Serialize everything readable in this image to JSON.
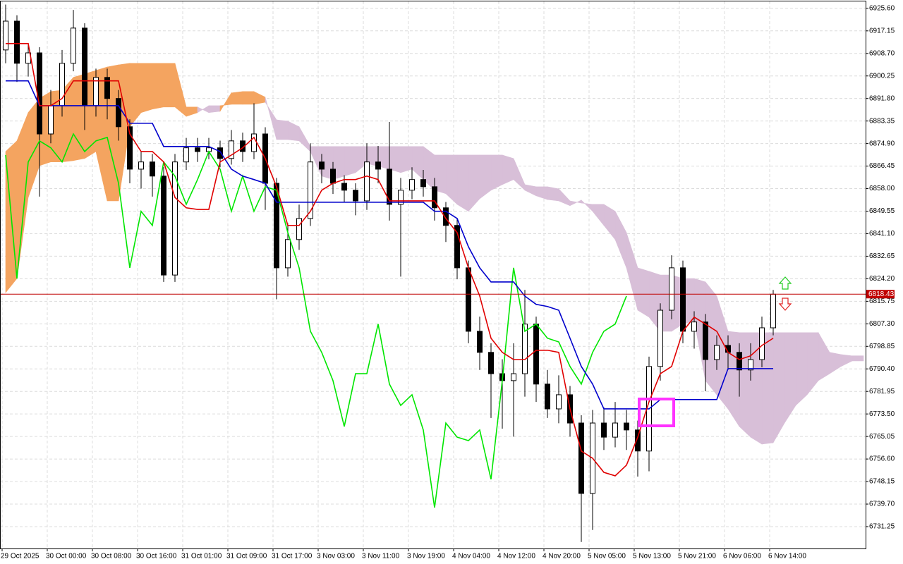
{
  "chart_data": {
    "type": "candlestick",
    "categories": [
      "29 Oct 2025",
      null,
      null,
      null,
      "30 Oct 00:00",
      null,
      null,
      null,
      "30 Oct 08:00",
      null,
      null,
      null,
      "30 Oct 16:00",
      null,
      null,
      null,
      "31 Oct 01:00",
      null,
      null,
      null,
      "31 Oct 09:00",
      null,
      null,
      null,
      "31 Oct 17:00",
      null,
      null,
      null,
      "3 Nov 03:00",
      null,
      null,
      null,
      "3 Nov 11:00",
      null,
      null,
      null,
      "3 Nov 19:00",
      null,
      null,
      null,
      "4 Nov 04:00",
      null,
      null,
      null,
      "4 Nov 12:00",
      null,
      null,
      null,
      "4 Nov 20:00",
      null,
      null,
      null,
      "5 Nov 05:00",
      null,
      null,
      null,
      "5 Nov 13:00",
      null,
      null,
      null,
      "5 Nov 21:00",
      null,
      null,
      null,
      "6 Nov 06:00",
      null,
      null,
      null,
      "6 Nov 14:00",
      null,
      null,
      null,
      null,
      null,
      null,
      null,
      null
    ],
    "open": [
      6910.0,
      6920.8,
      6905.0,
      6908.9,
      6878.5,
      6889.1,
      6905.0,
      6918.2,
      6889.1,
      6899.7,
      6891.8,
      6881.2,
      6865.3,
      6868.0,
      6862.7,
      6825.6,
      6868.0,
      6873.3,
      6871.9,
      6873.3,
      6869.3,
      6875.9,
      6871.9,
      6878.5,
      6860.0,
      6828.3,
      6838.9,
      6846.8,
      6868.0,
      6865.3,
      6860.0,
      6857.4,
      6853.4,
      6868.0,
      6865.3,
      6852.1,
      6857.4,
      6861.4,
      6858.7,
      6850.8,
      6844.2,
      6828.3,
      6804.5,
      6796.6,
      6788.6,
      6786.0,
      6788.6,
      6807.2,
      6784.7,
      6775.4,
      6780.7,
      6770.1,
      6743.7,
      6770.1,
      6764.8,
      6770.1,
      6767.5,
      6759.6,
      6791.3,
      6812.4,
      6828.3,
      6804.5,
      6808.0,
      6793.9,
      6799.2,
      6796.6,
      6790.0,
      6793.9,
      6805.8,
      null,
      null,
      null,
      null,
      null,
      null,
      null,
      null
    ],
    "high": [
      6927.0,
      6923.0,
      6912.0,
      6911.0,
      6895.0,
      6910.0,
      6925.0,
      6920.0,
      6903.0,
      6903.0,
      6895.0,
      6884.0,
      6872.0,
      6871.0,
      6866.0,
      6871.0,
      6877.0,
      6877.0,
      6877.0,
      6876.0,
      6880.0,
      6879.0,
      6890.0,
      6881.0,
      6862.0,
      6845.0,
      6852.0,
      6875.0,
      6871.0,
      6868.0,
      6863.0,
      6860.0,
      6875.0,
      6874.0,
      6883.0,
      6862.0,
      6866.0,
      6865.0,
      6862.0,
      6853.0,
      6847.0,
      6831.0,
      6810.0,
      6800.0,
      6794.0,
      6800.0,
      6820.0,
      6810.0,
      6790.0,
      6788.0,
      6784.0,
      6773.0,
      6775.0,
      6776.0,
      6778.0,
      6775.0,
      6771.0,
      6795.0,
      6815.0,
      6833.0,
      6831.0,
      6812.0,
      6811.0,
      6803.0,
      6803.0,
      6800.0,
      6800.0,
      6810.0,
      6820.0,
      null,
      null,
      null,
      null,
      null,
      null,
      null,
      null
    ],
    "low": [
      6905.0,
      6898.0,
      6900.0,
      6855.0,
      6875.0,
      6885.0,
      6902.0,
      6880.0,
      6885.0,
      6884.0,
      6876.0,
      6860.0,
      6858.0,
      6855.0,
      6823.0,
      6823.0,
      6865.0,
      6868.0,
      6869.0,
      6866.0,
      6867.0,
      6868.0,
      6869.0,
      6850.0,
      6816.5,
      6825.0,
      6835.0,
      6844.0,
      6860.0,
      6856.0,
      6853.0,
      6848.0,
      6850.0,
      6860.0,
      6846.0,
      6825.0,
      6854.0,
      6855.0,
      6846.0,
      6838.0,
      6824.0,
      6800.0,
      6790.0,
      6772.0,
      6768.0,
      6765.0,
      6780.0,
      6778.0,
      6772.0,
      6770.0,
      6765.0,
      6725.5,
      6730.0,
      6760.0,
      6761.0,
      6760.0,
      6750.0,
      6752.0,
      6786.0,
      6809.0,
      6800.0,
      6798.0,
      6782.0,
      6790.0,
      6790.0,
      6780.0,
      6786.0,
      6791.0,
      6803.0,
      null,
      null,
      null,
      null,
      null,
      null,
      null,
      null
    ],
    "close": [
      6920.8,
      6905.0,
      6908.9,
      6878.5,
      6889.1,
      6905.0,
      6918.2,
      6889.1,
      6899.7,
      6891.8,
      6881.2,
      6865.3,
      6868.0,
      6862.7,
      6825.6,
      6868.0,
      6873.3,
      6871.9,
      6873.3,
      6869.3,
      6875.9,
      6871.9,
      6878.5,
      6860.0,
      6828.3,
      6838.9,
      6846.8,
      6868.0,
      6865.3,
      6860.0,
      6857.4,
      6853.4,
      6868.0,
      6865.3,
      6852.1,
      6857.4,
      6861.4,
      6858.7,
      6850.8,
      6844.2,
      6828.3,
      6804.5,
      6796.6,
      6788.6,
      6786.0,
      6788.6,
      6807.2,
      6784.7,
      6775.4,
      6780.7,
      6770.1,
      6743.7,
      6770.1,
      6764.8,
      6770.1,
      6767.5,
      6759.6,
      6791.3,
      6812.4,
      6828.3,
      6804.5,
      6808.0,
      6793.9,
      6799.2,
      6796.6,
      6790.0,
      6793.9,
      6805.8,
      6818.4,
      null,
      null,
      null,
      null,
      null,
      null,
      null,
      null
    ],
    "candle_up_color": "#ffffff",
    "candle_down_color": "#000000",
    "span_a": [
      6871.9,
      6875.9,
      6886.5,
      6891.8,
      6894.4,
      6894.9,
      6899.7,
      6901.0,
      6902.3,
      6903.6,
      6904.4,
      6905.0,
      6905.0,
      6905.0,
      6905.0,
      6905.0,
      6888.6,
      6888.6,
      6886.5,
      6887.0,
      6893.9,
      6894.4,
      6894.4,
      6892.3,
      6876.4,
      6876.4,
      6875.9,
      6871.9,
      6862.7,
      6861.4,
      6862.7,
      6864.0,
      6867.4,
      6866.4,
      6865.3,
      6864.0,
      6865.3,
      6861.4,
      6857.4,
      6856.1,
      6852.1,
      6849.5,
      6854.2,
      6857.4,
      6859.5,
      6861.4,
      6857.4,
      6855.3,
      6853.9,
      6853.4,
      6851.6,
      6853.7,
      6849.5,
      6844.2,
      6838.9,
      6828.3,
      6812.4,
      6809.8,
      6804.5,
      6804.5,
      6807.2,
      6808.5,
      6786.0,
      6780.7,
      6775.4,
      6768.8,
      6764.8,
      6762.2,
      6762.7,
      6770.1,
      6776.7,
      6780.7,
      6786.0,
      6788.6,
      6791.3,
      6793.4,
      6793.4
    ],
    "span_b": [
      6819.0,
      6824.3,
      6854.7,
      6866.6,
      6868.0,
      6868.0,
      6868.5,
      6869.3,
      6871.9,
      6853.4,
      6853.4,
      6881.2,
      6886.5,
      6887.8,
      6888.6,
      6888.6,
      6885.1,
      6886.5,
      6889.1,
      6889.1,
      6889.6,
      6889.6,
      6889.6,
      6890.4,
      6883.8,
      6883.3,
      6881.2,
      6873.8,
      6873.8,
      6873.8,
      6873.8,
      6873.8,
      6873.8,
      6873.8,
      6873.8,
      6873.8,
      6873.8,
      6873.8,
      6870.6,
      6870.6,
      6870.6,
      6870.6,
      6870.6,
      6870.6,
      6870.6,
      6869.3,
      6859.5,
      6858.7,
      6858.7,
      6857.9,
      6853.4,
      6852.6,
      6852.1,
      6852.1,
      6849.5,
      6841.5,
      6828.3,
      6827.0,
      6825.6,
      6825.6,
      6824.3,
      6824.3,
      6823.0,
      6817.7,
      6804.5,
      6804.0,
      6804.0,
      6804.0,
      6804.0,
      6804.0,
      6804.0,
      6804.0,
      6804.0,
      6796.6,
      6795.8,
      6795.3,
      6795.3
    ],
    "cloud_up_color": "#f4a460",
    "cloud_down_color": "#d8bfd8",
    "lines": [
      {
        "color": "#00e600",
        "values": [
          6870.6,
          6824.3,
          6868.0,
          6875.9,
          6873.3,
          6868.0,
          6878.5,
          6871.9,
          6875.9,
          6877.2,
          6860.0,
          6828.3,
          6849.5,
          6844.2,
          6868.0,
          6862.7,
          6852.1,
          6861.4,
          6871.9,
          6865.3,
          6849.5,
          6862.7,
          6849.5,
          6858.7,
          6857.4,
          6841.5,
          6828.3,
          6804.5,
          6796.6,
          6786.0,
          6768.8,
          6788.6,
          6788.6,
          6807.2,
          6784.7,
          6776.7,
          6780.7,
          6767.5,
          6738.4,
          6770.1,
          6764.8,
          6763.5,
          6767.5,
          6749.0,
          6786.0,
          6828.3,
          6804.5,
          6807.2,
          6801.9,
          6800.5,
          6791.3,
          6784.7,
          6796.6,
          6804.5,
          6807.2,
          6817.7,
          null,
          null,
          null,
          null,
          null,
          null,
          null,
          null,
          null,
          null,
          null,
          null,
          null,
          null,
          null,
          null,
          null,
          null,
          null,
          null,
          null
        ]
      },
      {
        "color": "#0000cc",
        "values": [
          6898.4,
          6898.4,
          6898.4,
          6889.1,
          6889.1,
          6889.1,
          6889.1,
          6889.1,
          6889.1,
          6889.1,
          6889.1,
          6882.5,
          6882.5,
          6882.5,
          6873.8,
          6873.8,
          6873.8,
          6873.8,
          6873.8,
          6871.9,
          6865.3,
          6862.7,
          6861.4,
          6860.0,
          6852.9,
          6852.9,
          6852.9,
          6852.9,
          6852.9,
          6852.9,
          6852.9,
          6852.9,
          6852.9,
          6852.9,
          6852.9,
          6852.9,
          6852.9,
          6852.9,
          6849.5,
          6849.5,
          6846.8,
          6836.2,
          6828.3,
          6823.0,
          6823.0,
          6823.0,
          6817.7,
          6814.6,
          6813.8,
          6812.4,
          6801.9,
          6791.3,
          6784.7,
          6775.4,
          6775.4,
          6775.4,
          6775.4,
          6775.4,
          6778.9,
          6778.9,
          6778.9,
          6778.9,
          6778.9,
          6778.9,
          6790.5,
          6790.5,
          6790.5,
          6790.5,
          6790.5,
          null,
          null,
          null,
          null,
          null,
          null,
          null,
          null
        ]
      },
      {
        "color": "#e00000",
        "values": [
          6912.4,
          6912.4,
          6912.4,
          6889.1,
          6889.1,
          6891.8,
          6898.4,
          6898.4,
          6898.4,
          6898.4,
          6898.4,
          6878.5,
          6871.9,
          6871.9,
          6868.0,
          6854.7,
          6850.8,
          6850.2,
          6850.2,
          6868.0,
          6870.6,
          6873.3,
          6877.2,
          6869.3,
          6858.7,
          6844.2,
          6844.2,
          6849.5,
          6857.4,
          6860.0,
          6861.4,
          6861.4,
          6862.7,
          6861.4,
          6853.4,
          6853.4,
          6853.4,
          6853.4,
          6853.4,
          6846.8,
          6841.5,
          6828.3,
          6817.7,
          6801.9,
          6796.6,
          6793.9,
          6793.9,
          6797.4,
          6797.4,
          6796.6,
          6775.4,
          6759.6,
          6756.9,
          6751.6,
          6750.3,
          6754.3,
          6764.8,
          6778.1,
          6788.6,
          6791.3,
          6804.5,
          6809.8,
          6807.2,
          6804.5,
          6796.6,
          6793.9,
          6795.3,
          6799.2,
          6801.9,
          null,
          null,
          null,
          null,
          null,
          null,
          null,
          null
        ]
      }
    ],
    "last_price": 6818.43,
    "last_price_color": "#c00000",
    "ylim": [
      6723.05,
      6928.2
    ],
    "yticks": [
      {
        "value": 6925.6,
        "label": "6925.60"
      },
      {
        "value": 6917.15,
        "label": "6917.15"
      },
      {
        "value": 6908.7,
        "label": "6908.70"
      },
      {
        "value": 6900.25,
        "label": "6900.25"
      },
      {
        "value": 6891.8,
        "label": "6891.80"
      },
      {
        "value": 6883.35,
        "label": "6883.35"
      },
      {
        "value": 6874.9,
        "label": "6874.90"
      },
      {
        "value": 6866.45,
        "label": "6866.45"
      },
      {
        "value": 6858.0,
        "label": "6858.00"
      },
      {
        "value": 6849.55,
        "label": "6849.55"
      },
      {
        "value": 6841.1,
        "label": "6841.10"
      },
      {
        "value": 6832.65,
        "label": "6832.65"
      },
      {
        "value": 6824.2,
        "label": "6824.20"
      },
      {
        "value": 6815.75,
        "label": "6815.75"
      },
      {
        "value": 6807.3,
        "label": "6807.30"
      },
      {
        "value": 6798.85,
        "label": "6798.85"
      },
      {
        "value": 6790.4,
        "label": "6790.40"
      },
      {
        "value": 6781.95,
        "label": "6781.95"
      },
      {
        "value": 6773.5,
        "label": "6773.50"
      },
      {
        "value": 6765.05,
        "label": "6765.05"
      },
      {
        "value": 6756.6,
        "label": "6756.60"
      },
      {
        "value": 6748.15,
        "label": "6748.15"
      },
      {
        "value": 6739.7,
        "label": "6739.70"
      },
      {
        "value": 6731.25,
        "label": "6731.25"
      }
    ],
    "grid": true
  }
}
